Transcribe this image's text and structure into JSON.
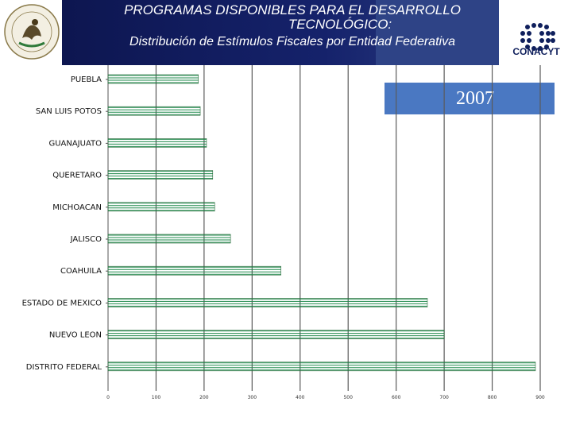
{
  "header": {
    "title_line1": "PROGRAMAS DISPONIBLES PARA EL DESARROLLO",
    "title_line1b": "TECNOLÓGICO:",
    "subtitle": "Distribución de Estímulos Fiscales por Entidad Federativa",
    "logo_right_text": "CONACYT",
    "band_color": "#15226b"
  },
  "year_badge": "2007",
  "chart_data": {
    "type": "bar",
    "orientation": "horizontal",
    "categories": [
      "PUEBLA",
      "SAN LUIS POTOS",
      "GUANAJUATO",
      "QUERETARO",
      "MICHOACAN",
      "JALISCO",
      "COAHUILA",
      "ESTADO DE MEXICO",
      "NUEVO LEON",
      "DISTRITO FEDERAL"
    ],
    "values": [
      188,
      192,
      205,
      218,
      222,
      255,
      360,
      665,
      700,
      890
    ],
    "xlim": [
      0,
      900
    ],
    "xticks": [
      "0",
      "100",
      "200",
      "300",
      "400",
      "500",
      "600",
      "700",
      "800",
      "900"
    ],
    "grid": true,
    "bar_color": "#1f8a4c"
  }
}
